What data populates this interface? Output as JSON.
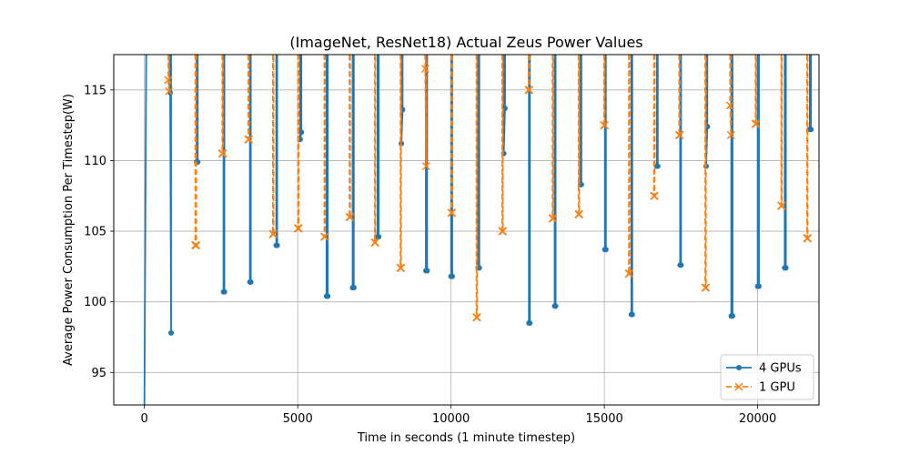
{
  "chart_data": {
    "type": "line",
    "title": "(ImageNet, ResNet18) Actual Zeus Power Values",
    "xlabel": "Time in seconds (1 minute timestep)",
    "ylabel": "Average Power Consumption Per Timestep(W)",
    "xlim": [
      -1000,
      22000
    ],
    "ylim": [
      92.7,
      117.5
    ],
    "xticks": [
      0,
      5000,
      10000,
      15000,
      20000
    ],
    "xtick_labels": [
      "0",
      "5000",
      "10000",
      "15000",
      "20000"
    ],
    "yticks": [
      95,
      100,
      105,
      110,
      115
    ],
    "ytick_labels": [
      "95",
      "100",
      "105",
      "110",
      "115"
    ],
    "grid": true,
    "legend_position": "lower-right",
    "series": [
      {
        "name": "4 GPUs",
        "color": "#1f77b4",
        "marker": "dot",
        "linestyle": "solid",
        "segments": [
          {
            "x": [
              0,
              60
            ],
            "y": [
              92.7,
              117.5
            ]
          },
          {
            "x": [
              840,
              840,
              870,
              870
            ],
            "y": [
              117.5,
              114.8,
              97.8,
              117.5
            ]
          },
          {
            "x": [
              1700,
              1700,
              1740,
              1740
            ],
            "y": [
              117.5,
              109.9,
              109.9,
              117.5
            ]
          },
          {
            "x": [
              2580,
              2580,
              2610,
              2610
            ],
            "y": [
              117.5,
              100.7,
              100.7,
              117.5
            ]
          },
          {
            "x": [
              3440,
              3440,
              3470,
              3470
            ],
            "y": [
              117.5,
              101.4,
              101.4,
              117.5
            ]
          },
          {
            "x": [
              4300,
              4300,
              4330,
              4330
            ],
            "y": [
              117.5,
              104.0,
              104.0,
              117.5
            ]
          },
          {
            "x": [
              5080,
              5080,
              5120,
              5120
            ],
            "y": [
              117.5,
              111.5,
              112.0,
              117.5
            ]
          },
          {
            "x": [
              5940,
              5940,
              5980,
              5980
            ],
            "y": [
              117.5,
              100.4,
              100.4,
              117.5
            ]
          },
          {
            "x": [
              6790,
              6790,
              6830,
              6830
            ],
            "y": [
              117.5,
              101.0,
              101.0,
              117.5
            ]
          },
          {
            "x": [
              7600,
              7600,
              7640,
              7640
            ],
            "y": [
              117.5,
              104.6,
              104.6,
              117.5
            ]
          },
          {
            "x": [
              8380,
              8380,
              8420,
              8420
            ],
            "y": [
              117.5,
              111.2,
              113.6,
              117.5
            ]
          },
          {
            "x": [
              9180,
              9180,
              9220,
              9220
            ],
            "y": [
              117.5,
              102.2,
              102.2,
              117.5
            ]
          },
          {
            "x": [
              10000,
              10000,
              10040,
              10040
            ],
            "y": [
              117.5,
              101.8,
              101.8,
              117.5
            ]
          },
          {
            "x": [
              10880,
              10880,
              10920,
              10920
            ],
            "y": [
              117.5,
              102.4,
              102.4,
              117.5
            ]
          },
          {
            "x": [
              11720,
              11720,
              11760,
              11760
            ],
            "y": [
              117.5,
              110.5,
              113.7,
              117.5
            ]
          },
          {
            "x": [
              12540,
              12540,
              12570,
              12570
            ],
            "y": [
              117.5,
              98.5,
              98.5,
              117.5
            ]
          },
          {
            "x": [
              13380,
              13380,
              13410,
              13410
            ],
            "y": [
              117.5,
              99.7,
              99.7,
              117.5
            ]
          },
          {
            "x": [
              14220,
              14220,
              14250,
              14250
            ],
            "y": [
              117.5,
              108.3,
              108.3,
              117.5
            ]
          },
          {
            "x": [
              15020,
              15020,
              15050,
              15050
            ],
            "y": [
              117.5,
              103.7,
              103.7,
              117.5
            ]
          },
          {
            "x": [
              15880,
              15880,
              15910,
              15910
            ],
            "y": [
              117.5,
              99.1,
              99.1,
              117.5
            ]
          },
          {
            "x": [
              16710,
              16710,
              16740,
              16740
            ],
            "y": [
              117.5,
              109.6,
              109.6,
              117.5
            ]
          },
          {
            "x": [
              17470,
              17470,
              17500,
              17500
            ],
            "y": [
              117.5,
              102.6,
              102.6,
              117.5
            ]
          },
          {
            "x": [
              18320,
              18320,
              18360,
              18360
            ],
            "y": [
              117.5,
              109.6,
              112.4,
              117.5
            ]
          },
          {
            "x": [
              19140,
              19140,
              19180,
              19180
            ],
            "y": [
              117.5,
              99.0,
              99.0,
              117.5
            ]
          },
          {
            "x": [
              20000,
              20000,
              20040,
              20040
            ],
            "y": [
              117.5,
              101.1,
              101.1,
              117.5
            ]
          },
          {
            "x": [
              20880,
              20880,
              20920,
              20920
            ],
            "y": [
              117.5,
              102.4,
              102.4,
              117.5
            ]
          },
          {
            "x": [
              21700,
              21700,
              21740,
              21740
            ],
            "y": [
              117.5,
              112.2,
              112.2,
              117.5
            ]
          }
        ]
      },
      {
        "name": "1 GPU",
        "color": "#ff7f0e",
        "marker": "x",
        "linestyle": "dashed",
        "segments": [
          {
            "x": [
              780,
              780,
              800,
              800
            ],
            "y": [
              117.5,
              115.7,
              114.9,
              117.5
            ]
          },
          {
            "x": [
              1660,
              1660,
              1690,
              1690
            ],
            "y": [
              117.5,
              104.0,
              104.0,
              117.5
            ]
          },
          {
            "x": [
              2540,
              2540,
              2560,
              2560
            ],
            "y": [
              117.5,
              110.5,
              110.5,
              117.5
            ]
          },
          {
            "x": [
              3390,
              3390,
              3410,
              3410
            ],
            "y": [
              117.5,
              111.5,
              111.5,
              117.5
            ]
          },
          {
            "x": [
              4190,
              4190,
              4210,
              4210
            ],
            "y": [
              117.5,
              104.8,
              104.8,
              117.5
            ]
          },
          {
            "x": [
              5010,
              5010,
              5030,
              5030
            ],
            "y": [
              117.5,
              105.2,
              105.2,
              117.5
            ]
          },
          {
            "x": [
              5870,
              5870,
              5890,
              5890
            ],
            "y": [
              117.5,
              104.6,
              104.6,
              117.5
            ]
          },
          {
            "x": [
              6690,
              6690,
              6710,
              6710
            ],
            "y": [
              117.5,
              106.0,
              106.0,
              117.5
            ]
          },
          {
            "x": [
              7510,
              7510,
              7530,
              7530
            ],
            "y": [
              117.5,
              104.2,
              104.2,
              117.5
            ]
          },
          {
            "x": [
              8350,
              8350,
              8370,
              8370
            ],
            "y": [
              117.5,
              102.4,
              102.4,
              117.5
            ]
          },
          {
            "x": [
              9160,
              9160,
              9190,
              9190
            ],
            "y": [
              117.5,
              116.5,
              109.6,
              117.5
            ]
          },
          {
            "x": [
              10010,
              10010,
              10030,
              10030
            ],
            "y": [
              117.5,
              106.3,
              106.3,
              117.5
            ]
          },
          {
            "x": [
              10830,
              10830,
              10850,
              10850
            ],
            "y": [
              117.5,
              98.9,
              98.9,
              117.5
            ]
          },
          {
            "x": [
              11670,
              11670,
              11690,
              11690
            ],
            "y": [
              117.5,
              105.0,
              105.0,
              117.5
            ]
          },
          {
            "x": [
              12530,
              12530,
              12550,
              12550
            ],
            "y": [
              117.5,
              115.0,
              115.0,
              117.5
            ]
          },
          {
            "x": [
              13310,
              13310,
              13330,
              13330
            ],
            "y": [
              117.5,
              105.9,
              105.9,
              117.5
            ]
          },
          {
            "x": [
              14160,
              14160,
              14180,
              14180
            ],
            "y": [
              117.5,
              106.2,
              106.2,
              117.5
            ]
          },
          {
            "x": [
              14990,
              14990,
              15010,
              15010
            ],
            "y": [
              117.5,
              112.5,
              112.5,
              117.5
            ]
          },
          {
            "x": [
              15800,
              15800,
              15820,
              15820
            ],
            "y": [
              117.5,
              102.0,
              102.0,
              117.5
            ]
          },
          {
            "x": [
              16620,
              16620,
              16640,
              16640
            ],
            "y": [
              117.5,
              107.5,
              107.5,
              117.5
            ]
          },
          {
            "x": [
              17440,
              17440,
              17460,
              17460
            ],
            "y": [
              117.5,
              111.8,
              111.8,
              117.5
            ]
          },
          {
            "x": [
              18290,
              18290,
              18310,
              18310
            ],
            "y": [
              117.5,
              101.0,
              101.0,
              117.5
            ]
          },
          {
            "x": [
              19100,
              19100,
              19130,
              19130
            ],
            "y": [
              117.5,
              113.9,
              111.8,
              117.5
            ]
          },
          {
            "x": [
              19930,
              19930,
              19950,
              19950
            ],
            "y": [
              117.5,
              112.6,
              112.6,
              117.5
            ]
          },
          {
            "x": [
              20770,
              20770,
              20790,
              20790
            ],
            "y": [
              117.5,
              106.8,
              106.8,
              117.5
            ]
          },
          {
            "x": [
              21610,
              21610,
              21630,
              21630
            ],
            "y": [
              117.5,
              104.5,
              104.5,
              117.5
            ]
          }
        ]
      }
    ]
  }
}
